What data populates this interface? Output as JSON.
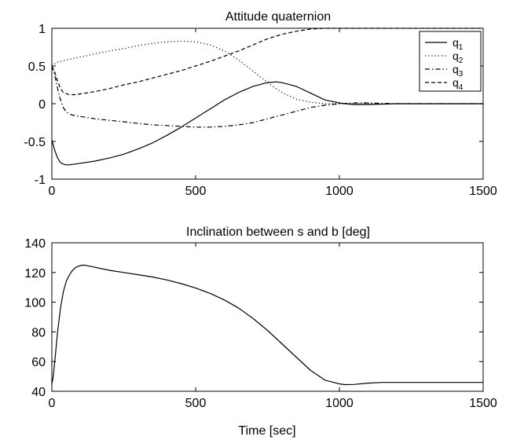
{
  "chart_data": [
    {
      "type": "line",
      "title": "Attitude quaternion",
      "xlabel": "",
      "ylabel": "",
      "xlim": [
        0,
        1500
      ],
      "ylim": [
        -1,
        1
      ],
      "xticks": [
        "0",
        "500",
        "1000",
        "1500"
      ],
      "yticks": [
        "-1",
        "-0.5",
        "0",
        "0.5",
        "1"
      ],
      "grid": false,
      "legend_position": "top-right",
      "series": [
        {
          "name": "q",
          "subscript": "1",
          "style": "solid",
          "x": [
            0,
            10,
            20,
            30,
            40,
            50,
            60,
            80,
            100,
            150,
            200,
            250,
            300,
            350,
            400,
            450,
            500,
            550,
            600,
            650,
            700,
            750,
            780,
            800,
            850,
            900,
            950,
            1000,
            1020,
            1050,
            1100,
            1200,
            1300,
            1400,
            1500
          ],
          "y": [
            -0.48,
            -0.62,
            -0.72,
            -0.78,
            -0.8,
            -0.81,
            -0.81,
            -0.8,
            -0.79,
            -0.76,
            -0.72,
            -0.67,
            -0.6,
            -0.52,
            -0.42,
            -0.31,
            -0.19,
            -0.07,
            0.05,
            0.15,
            0.23,
            0.28,
            0.29,
            0.28,
            0.23,
            0.14,
            0.05,
            0.01,
            0.0,
            -0.01,
            -0.01,
            0.0,
            0.0,
            0.0,
            0.0
          ]
        },
        {
          "name": "q",
          "subscript": "2",
          "style": "dotted",
          "x": [
            0,
            10,
            20,
            40,
            60,
            100,
            150,
            200,
            250,
            300,
            350,
            400,
            450,
            500,
            550,
            600,
            650,
            700,
            750,
            800,
            850,
            900,
            950,
            1000,
            1050,
            1100,
            1200,
            1300,
            1400,
            1500
          ],
          "y": [
            0.5,
            0.53,
            0.55,
            0.57,
            0.59,
            0.62,
            0.66,
            0.7,
            0.73,
            0.77,
            0.8,
            0.82,
            0.83,
            0.82,
            0.78,
            0.7,
            0.58,
            0.43,
            0.28,
            0.15,
            0.06,
            0.02,
            0.0,
            0.0,
            0.0,
            0.0,
            0.0,
            0.0,
            0.0,
            0.0
          ]
        },
        {
          "name": "q",
          "subscript": "3",
          "style": "dashdot",
          "x": [
            0,
            10,
            20,
            30,
            40,
            50,
            70,
            100,
            150,
            200,
            250,
            300,
            350,
            400,
            450,
            500,
            550,
            600,
            650,
            700,
            750,
            800,
            850,
            900,
            950,
            1000,
            1050,
            1100,
            1200,
            1300,
            1400,
            1500
          ],
          "y": [
            0.5,
            0.38,
            0.2,
            0.05,
            -0.05,
            -0.11,
            -0.15,
            -0.17,
            -0.2,
            -0.22,
            -0.24,
            -0.26,
            -0.28,
            -0.29,
            -0.3,
            -0.31,
            -0.31,
            -0.3,
            -0.28,
            -0.25,
            -0.2,
            -0.15,
            -0.1,
            -0.05,
            -0.02,
            0.0,
            0.01,
            0.01,
            0.0,
            0.0,
            0.0,
            0.0
          ]
        },
        {
          "name": "q",
          "subscript": "4",
          "style": "dashed",
          "x": [
            0,
            10,
            20,
            30,
            40,
            60,
            80,
            100,
            150,
            200,
            250,
            300,
            350,
            400,
            450,
            500,
            550,
            600,
            650,
            700,
            750,
            800,
            850,
            900,
            950,
            1000,
            1050,
            1100,
            1200,
            1300,
            1400,
            1500
          ],
          "y": [
            0.5,
            0.42,
            0.3,
            0.2,
            0.15,
            0.12,
            0.12,
            0.13,
            0.16,
            0.2,
            0.25,
            0.29,
            0.34,
            0.39,
            0.44,
            0.5,
            0.56,
            0.63,
            0.7,
            0.78,
            0.86,
            0.92,
            0.96,
            0.99,
            1.0,
            1.0,
            1.0,
            1.0,
            1.0,
            1.0,
            1.0,
            1.0
          ]
        }
      ]
    },
    {
      "type": "line",
      "title": "Inclination between s and b [deg]",
      "xlabel": "Time [sec]",
      "ylabel": "",
      "xlim": [
        0,
        1500
      ],
      "ylim": [
        40,
        140
      ],
      "xticks": [
        "0",
        "500",
        "1000",
        "1500"
      ],
      "yticks": [
        "40",
        "60",
        "80",
        "100",
        "120",
        "140"
      ],
      "grid": false,
      "series": [
        {
          "style": "solid",
          "x": [
            0,
            5,
            10,
            20,
            30,
            40,
            50,
            60,
            70,
            80,
            90,
            100,
            110,
            120,
            150,
            200,
            250,
            300,
            350,
            400,
            450,
            500,
            550,
            600,
            650,
            700,
            750,
            800,
            850,
            900,
            950,
            1000,
            1020,
            1050,
            1100,
            1150,
            1200,
            1300,
            1400,
            1500
          ],
          "y": [
            45,
            50,
            60,
            80,
            96,
            107,
            114,
            118,
            121,
            123,
            124,
            124.7,
            125,
            124.7,
            123.5,
            121.5,
            120,
            118.5,
            117,
            115,
            112.5,
            109.5,
            106,
            101.5,
            96,
            89,
            81,
            72,
            63,
            54,
            47.5,
            45,
            44.5,
            44.6,
            45.5,
            46,
            46,
            46,
            46,
            46
          ]
        }
      ]
    }
  ]
}
